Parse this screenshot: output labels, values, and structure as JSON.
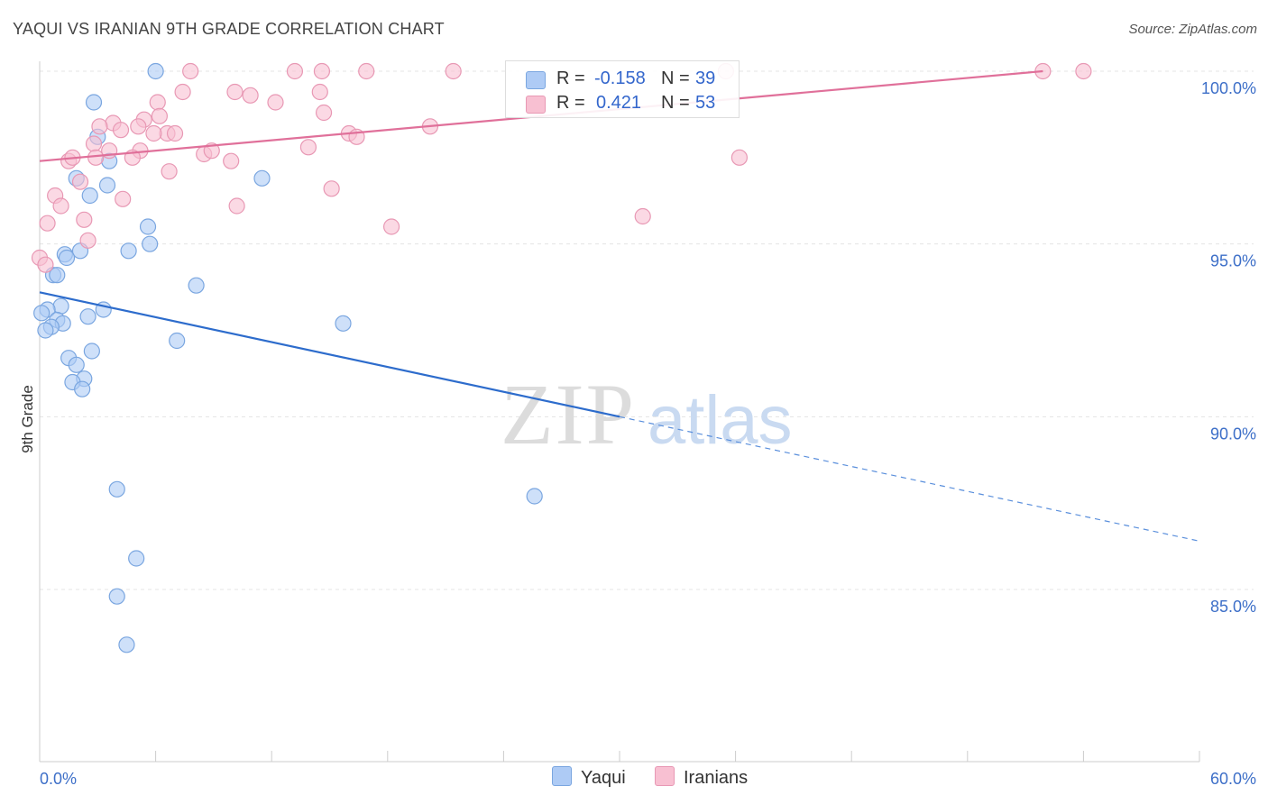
{
  "title": "YAQUI VS IRANIAN 9TH GRADE CORRELATION CHART",
  "source": "Source: ZipAtlas.com",
  "watermark": {
    "zip": "ZIP",
    "atlas": "atlas"
  },
  "legend": {
    "rows": [
      {
        "r_label": "R =",
        "r_value": "-0.158",
        "n_label": "N =",
        "n_value": "39",
        "color": "#aecbf5",
        "border": "#7aa6e0"
      },
      {
        "r_label": "R =",
        "r_value": "0.421",
        "n_label": "N =",
        "n_value": "53",
        "color": "#f8c0d2",
        "border": "#e898b4"
      }
    ]
  },
  "bottom_legend": [
    {
      "label": "Yaqui",
      "color": "#aecbf5",
      "border": "#7aa6e0"
    },
    {
      "label": "Iranians",
      "color": "#f8c0d2",
      "border": "#e898b4"
    }
  ],
  "chart_data": {
    "type": "scatter",
    "title": "YAQUI VS IRANIAN 9TH GRADE CORRELATION CHART",
    "xlabel": "",
    "ylabel": "9th Grade",
    "xlim": [
      0,
      60
    ],
    "ylim": [
      80.0,
      100.5
    ],
    "x_tick_labels": [
      "0.0%",
      "60.0%"
    ],
    "y_ticks": [
      85,
      90,
      95,
      100
    ],
    "y_tick_labels": [
      "85.0%",
      "90.0%",
      "95.0%",
      "100.0%"
    ],
    "grid": true,
    "legend_position": "top-center",
    "series": [
      {
        "name": "Yaqui",
        "color": "#7aa6e0",
        "fill": "#aecbf5",
        "points": [
          [
            6.0,
            100.0
          ],
          [
            2.8,
            99.1
          ],
          [
            3.0,
            98.1
          ],
          [
            3.6,
            97.4
          ],
          [
            11.5,
            96.9
          ],
          [
            1.9,
            96.9
          ],
          [
            3.5,
            96.7
          ],
          [
            2.6,
            96.4
          ],
          [
            5.6,
            95.5
          ],
          [
            5.7,
            95.0
          ],
          [
            4.6,
            94.8
          ],
          [
            2.1,
            94.8
          ],
          [
            1.3,
            94.7
          ],
          [
            1.4,
            94.6
          ],
          [
            0.7,
            94.1
          ],
          [
            0.9,
            94.1
          ],
          [
            8.1,
            93.8
          ],
          [
            1.1,
            93.2
          ],
          [
            0.4,
            93.1
          ],
          [
            3.3,
            93.1
          ],
          [
            2.5,
            92.9
          ],
          [
            0.9,
            92.8
          ],
          [
            1.2,
            92.7
          ],
          [
            15.7,
            92.7
          ],
          [
            0.6,
            92.6
          ],
          [
            0.3,
            92.5
          ],
          [
            7.1,
            92.2
          ],
          [
            2.7,
            91.9
          ],
          [
            1.5,
            91.7
          ],
          [
            1.9,
            91.5
          ],
          [
            2.3,
            91.1
          ],
          [
            1.7,
            91.0
          ],
          [
            2.2,
            90.8
          ],
          [
            4.0,
            87.9
          ],
          [
            25.6,
            87.7
          ],
          [
            5.0,
            85.9
          ],
          [
            4.0,
            84.8
          ],
          [
            4.5,
            83.4
          ],
          [
            0.1,
            93.0
          ]
        ],
        "trend": {
          "x_start": 0.0,
          "y_start": 93.6,
          "x_solid_end": 30.0,
          "y_solid_end": 90.0,
          "x_end": 60.0,
          "y_end": 86.4
        }
      },
      {
        "name": "Iranians",
        "color": "#e898b4",
        "fill": "#f8c0d2",
        "points": [
          [
            7.8,
            100.0
          ],
          [
            13.2,
            100.0
          ],
          [
            14.6,
            100.0
          ],
          [
            16.9,
            100.0
          ],
          [
            21.4,
            100.0
          ],
          [
            35.5,
            100.0
          ],
          [
            51.9,
            100.0
          ],
          [
            54.0,
            100.0
          ],
          [
            6.1,
            99.1
          ],
          [
            7.4,
            99.4
          ],
          [
            10.1,
            99.4
          ],
          [
            10.9,
            99.3
          ],
          [
            12.2,
            99.1
          ],
          [
            14.5,
            99.4
          ],
          [
            5.4,
            98.6
          ],
          [
            6.2,
            98.7
          ],
          [
            14.7,
            98.8
          ],
          [
            3.8,
            98.5
          ],
          [
            4.2,
            98.3
          ],
          [
            5.1,
            98.4
          ],
          [
            6.6,
            98.2
          ],
          [
            7.0,
            98.2
          ],
          [
            3.1,
            98.4
          ],
          [
            5.9,
            98.2
          ],
          [
            16.0,
            98.2
          ],
          [
            16.4,
            98.1
          ],
          [
            20.2,
            98.4
          ],
          [
            2.8,
            97.9
          ],
          [
            5.2,
            97.7
          ],
          [
            8.5,
            97.6
          ],
          [
            8.9,
            97.7
          ],
          [
            3.6,
            97.7
          ],
          [
            1.5,
            97.4
          ],
          [
            1.7,
            97.5
          ],
          [
            2.9,
            97.5
          ],
          [
            4.8,
            97.5
          ],
          [
            9.9,
            97.4
          ],
          [
            6.7,
            97.1
          ],
          [
            13.9,
            97.8
          ],
          [
            36.2,
            97.5
          ],
          [
            15.1,
            96.6
          ],
          [
            2.1,
            96.8
          ],
          [
            0.8,
            96.4
          ],
          [
            1.1,
            96.1
          ],
          [
            4.3,
            96.3
          ],
          [
            10.2,
            96.1
          ],
          [
            31.2,
            95.8
          ],
          [
            0.4,
            95.6
          ],
          [
            2.3,
            95.7
          ],
          [
            18.2,
            95.5
          ],
          [
            2.5,
            95.1
          ],
          [
            0.0,
            94.6
          ],
          [
            0.3,
            94.4
          ]
        ],
        "trend": {
          "x_start": 0.0,
          "y_start": 97.4,
          "x_end": 51.9,
          "y_end": 100.0
        }
      }
    ]
  }
}
